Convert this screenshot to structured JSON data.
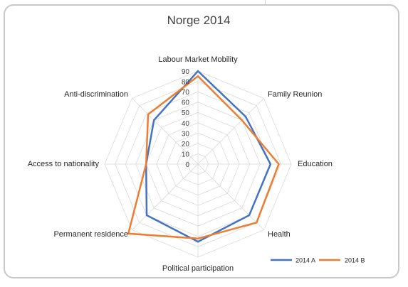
{
  "chart_data": {
    "type": "radar",
    "title": "Norge 2014",
    "categories": [
      "Labour Market Mobility",
      "Family Reunion",
      "Education",
      "Health",
      "Political participation",
      "Permanent residence",
      "Access to nationality",
      "Anti-discrimination"
    ],
    "ticks": [
      "0",
      "10",
      "20",
      "30",
      "40",
      "50",
      "60",
      "70",
      "80",
      "90"
    ],
    "rmin": 0,
    "rmax": 90,
    "grid": true,
    "legend_position": "bottom-right",
    "series": [
      {
        "name": "2014 A",
        "color": "#4472c4",
        "values": [
          90,
          65,
          70,
          70,
          75,
          70,
          50,
          60
        ]
      },
      {
        "name": "2014 B",
        "color": "#ed7d31",
        "values": [
          85,
          60,
          78,
          80,
          72,
          95,
          50,
          68
        ]
      }
    ]
  }
}
